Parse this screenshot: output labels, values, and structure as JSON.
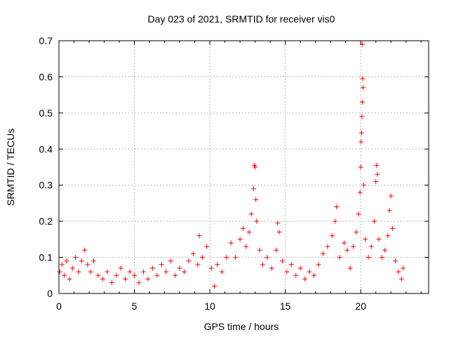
{
  "chart_data": {
    "type": "scatter",
    "title": "Day 023 of 2021, SRMTID for receiver vis0",
    "xlabel": "GPS time / hours",
    "ylabel": "SRMTID / TECUs",
    "xlim": [
      0,
      24.5
    ],
    "ylim": [
      0,
      0.7
    ],
    "xticks": [
      "0",
      "5",
      "10",
      "15",
      "20"
    ],
    "xtick_values": [
      0,
      5,
      10,
      15,
      20
    ],
    "yticks": [
      "0",
      "0.1",
      "0.2",
      "0.3",
      "0.4",
      "0.5",
      "0.6",
      "0.7"
    ],
    "ytick_values": [
      0,
      0.1,
      0.2,
      0.3,
      0.4,
      0.5,
      0.6,
      0.7
    ],
    "grid": true,
    "marker": "+",
    "marker_color": "#ff0000",
    "series": [
      {
        "name": "vis0",
        "points": [
          [
            0.05,
            0.06
          ],
          [
            0.2,
            0.08
          ],
          [
            0.35,
            0.05
          ],
          [
            0.5,
            0.09
          ],
          [
            0.7,
            0.04
          ],
          [
            0.9,
            0.07
          ],
          [
            1.1,
            0.1
          ],
          [
            1.3,
            0.06
          ],
          [
            1.5,
            0.09
          ],
          [
            1.7,
            0.12
          ],
          [
            1.9,
            0.08
          ],
          [
            2.1,
            0.06
          ],
          [
            2.3,
            0.09
          ],
          [
            2.6,
            0.05
          ],
          [
            2.9,
            0.04
          ],
          [
            3.2,
            0.06
          ],
          [
            3.5,
            0.03
          ],
          [
            3.8,
            0.05
          ],
          [
            4.1,
            0.07
          ],
          [
            4.4,
            0.04
          ],
          [
            4.7,
            0.06
          ],
          [
            5.0,
            0.05
          ],
          [
            5.3,
            0.03
          ],
          [
            5.6,
            0.06
          ],
          [
            5.9,
            0.04
          ],
          [
            6.2,
            0.07
          ],
          [
            6.5,
            0.05
          ],
          [
            6.8,
            0.08
          ],
          [
            7.1,
            0.06
          ],
          [
            7.4,
            0.09
          ],
          [
            7.7,
            0.05
          ],
          [
            8.0,
            0.07
          ],
          [
            8.3,
            0.06
          ],
          [
            8.6,
            0.09
          ],
          [
            8.9,
            0.11
          ],
          [
            9.2,
            0.08
          ],
          [
            9.3,
            0.16
          ],
          [
            9.5,
            0.1
          ],
          [
            9.8,
            0.13
          ],
          [
            10.1,
            0.07
          ],
          [
            10.3,
            0.02
          ],
          [
            10.5,
            0.08
          ],
          [
            10.8,
            0.06
          ],
          [
            11.1,
            0.1
          ],
          [
            11.4,
            0.14
          ],
          [
            11.7,
            0.1
          ],
          [
            12.0,
            0.15
          ],
          [
            12.2,
            0.18
          ],
          [
            12.4,
            0.13
          ],
          [
            12.6,
            0.17
          ],
          [
            12.75,
            0.22
          ],
          [
            12.9,
            0.29
          ],
          [
            12.95,
            0.355
          ],
          [
            13.0,
            0.35
          ],
          [
            13.05,
            0.26
          ],
          [
            13.1,
            0.2
          ],
          [
            13.3,
            0.12
          ],
          [
            13.5,
            0.08
          ],
          [
            13.8,
            0.1
          ],
          [
            14.1,
            0.07
          ],
          [
            14.4,
            0.12
          ],
          [
            14.5,
            0.195
          ],
          [
            14.6,
            0.17
          ],
          [
            14.8,
            0.09
          ],
          [
            15.1,
            0.06
          ],
          [
            15.4,
            0.08
          ],
          [
            15.7,
            0.05
          ],
          [
            16.0,
            0.07
          ],
          [
            16.3,
            0.04
          ],
          [
            16.6,
            0.06
          ],
          [
            16.9,
            0.05
          ],
          [
            17.2,
            0.08
          ],
          [
            17.5,
            0.11
          ],
          [
            17.8,
            0.13
          ],
          [
            18.1,
            0.16
          ],
          [
            18.3,
            0.2
          ],
          [
            18.4,
            0.24
          ],
          [
            18.6,
            0.1
          ],
          [
            18.9,
            0.14
          ],
          [
            19.1,
            0.12
          ],
          [
            19.3,
            0.07
          ],
          [
            19.5,
            0.13
          ],
          [
            19.7,
            0.17
          ],
          [
            19.85,
            0.22
          ],
          [
            19.95,
            0.28
          ],
          [
            20.0,
            0.35
          ],
          [
            20.02,
            0.42
          ],
          [
            20.05,
            0.445
          ],
          [
            20.08,
            0.49
          ],
          [
            20.1,
            0.53
          ],
          [
            20.12,
            0.595
          ],
          [
            20.15,
            0.57
          ],
          [
            20.1,
            0.69
          ],
          [
            20.2,
            0.3
          ],
          [
            20.3,
            0.15
          ],
          [
            20.5,
            0.1
          ],
          [
            20.7,
            0.13
          ],
          [
            20.9,
            0.2
          ],
          [
            21.0,
            0.31
          ],
          [
            21.05,
            0.355
          ],
          [
            21.1,
            0.33
          ],
          [
            21.2,
            0.15
          ],
          [
            21.4,
            0.1
          ],
          [
            21.6,
            0.12
          ],
          [
            21.8,
            0.16
          ],
          [
            21.9,
            0.23
          ],
          [
            22.0,
            0.27
          ],
          [
            22.1,
            0.18
          ],
          [
            22.3,
            0.09
          ],
          [
            22.5,
            0.06
          ],
          [
            22.7,
            0.04
          ],
          [
            22.8,
            0.07
          ]
        ]
      }
    ]
  }
}
